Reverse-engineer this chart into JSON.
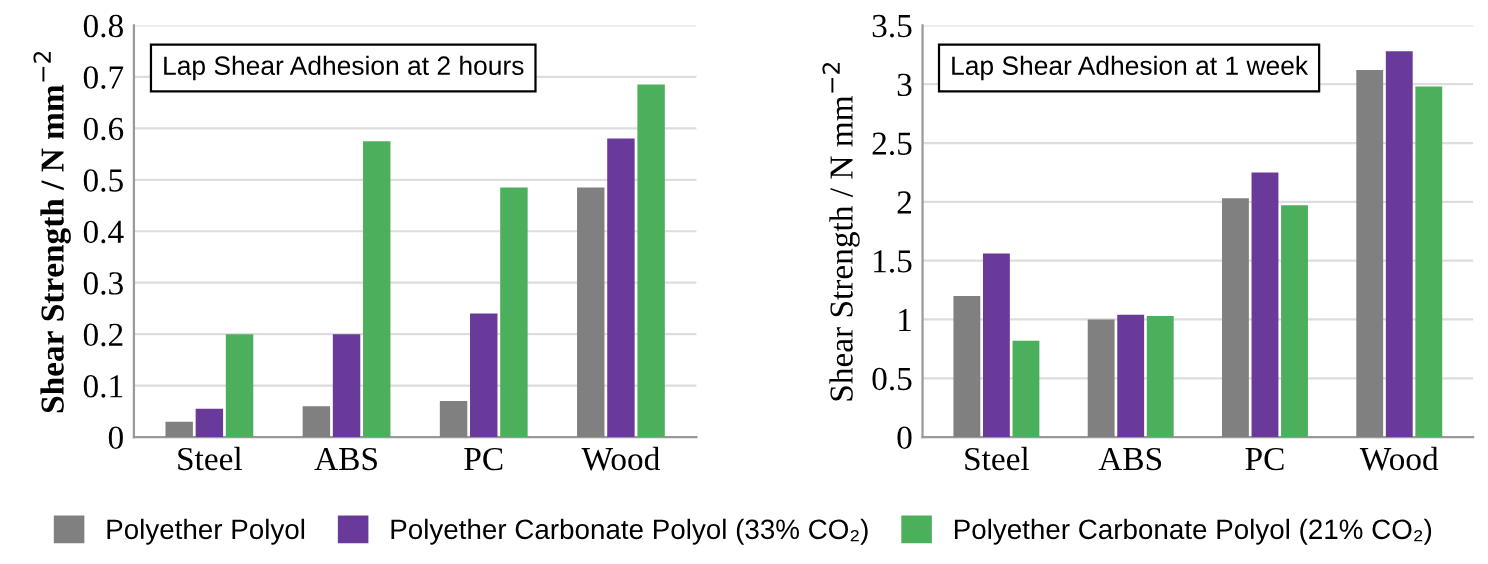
{
  "chart_data": [
    {
      "type": "bar",
      "title": "Lap Shear Adhesion at 2 hours",
      "ylabel": "Shear Strength / N mm$^{−2}$",
      "categories": [
        "Steel",
        "ABS",
        "PC",
        "Wood"
      ],
      "series": [
        {
          "name": "Polyether Polyol",
          "color": "#808080",
          "values": [
            0.03,
            0.06,
            0.07,
            0.485
          ]
        },
        {
          "name": "Polyether Carbonate Polyol (33% CO₂)",
          "color": "#6a3a9a",
          "values": [
            0.055,
            0.2,
            0.24,
            0.58
          ]
        },
        {
          "name": "Polyether Carbonate Polyol (21% CO₂)",
          "color": "#4caf5b",
          "values": [
            0.2,
            0.575,
            0.485,
            0.685
          ]
        }
      ],
      "ylim": [
        0,
        0.8
      ],
      "yticks": [
        0,
        0.1,
        0.2,
        0.3,
        0.4,
        0.5,
        0.6,
        0.7,
        0.8
      ],
      "grid": "y",
      "legend": "bottom"
    },
    {
      "type": "bar",
      "title": "Lap Shear Adhesion at 1 week",
      "ylabel": "Shear Strength / N mm$^{−2}$",
      "categories": [
        "Steel",
        "ABS",
        "PC",
        "Wood"
      ],
      "series": [
        {
          "name": "Polyether Polyol",
          "color": "#808080",
          "values": [
            1.2,
            1.0,
            2.03,
            3.12
          ]
        },
        {
          "name": "Polyether Carbonate Polyol (33% CO₂)",
          "color": "#6a3a9a",
          "values": [
            1.56,
            1.04,
            2.25,
            3.28
          ]
        },
        {
          "name": "Polyether Carbonate Polyol (21% CO₂)",
          "color": "#4caf5b",
          "values": [
            0.82,
            1.03,
            1.97,
            2.98
          ]
        }
      ],
      "ylim": [
        0,
        3.5
      ],
      "yticks": [
        0,
        0.5,
        1,
        1.5,
        2,
        2.5,
        3,
        3.5
      ],
      "grid": "y"
    }
  ]
}
